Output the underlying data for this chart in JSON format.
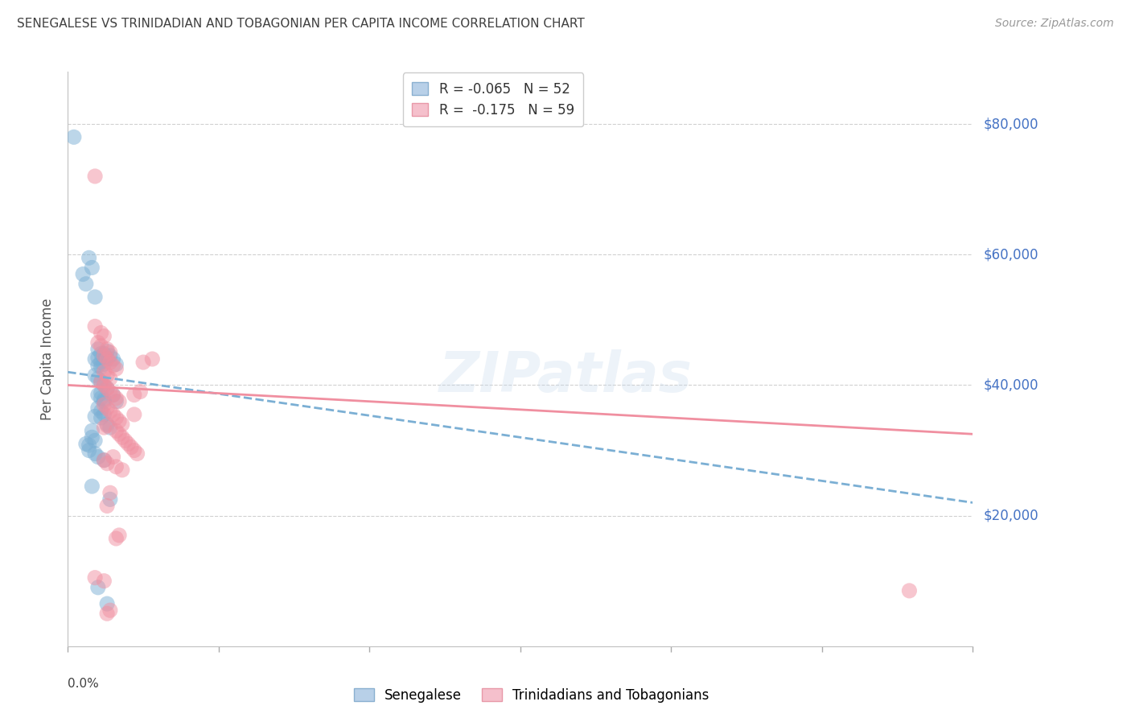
{
  "title": "SENEGALESE VS TRINIDADIAN AND TOBAGONIAN PER CAPITA INCOME CORRELATION CHART",
  "source": "Source: ZipAtlas.com",
  "ylabel": "Per Capita Income",
  "yticks": [
    20000,
    40000,
    60000,
    80000
  ],
  "ytick_labels": [
    "$20,000",
    "$40,000",
    "$60,000",
    "$80,000"
  ],
  "xlim": [
    0.0,
    0.3
  ],
  "ylim": [
    0,
    88000
  ],
  "xtick_positions": [
    0.0,
    0.05,
    0.1,
    0.15,
    0.2,
    0.25,
    0.3
  ],
  "legend_line1": "R = -0.065   N = 52",
  "legend_line2": "R =  -0.175   N = 59",
  "legend_bottom": [
    "Senegalese",
    "Trinidadians and Tobagonians"
  ],
  "blue_line": [
    0.0,
    42000,
    0.3,
    22000
  ],
  "pink_line": [
    0.0,
    40000,
    0.3,
    32500
  ],
  "blue_scatter": [
    [
      0.002,
      78000
    ],
    [
      0.005,
      57000
    ],
    [
      0.007,
      59500
    ],
    [
      0.008,
      58000
    ],
    [
      0.006,
      55500
    ],
    [
      0.009,
      53500
    ],
    [
      0.01,
      45500
    ],
    [
      0.011,
      44800
    ],
    [
      0.009,
      44000
    ],
    [
      0.01,
      44200
    ],
    [
      0.011,
      43500
    ],
    [
      0.012,
      44800
    ],
    [
      0.013,
      45200
    ],
    [
      0.01,
      43000
    ],
    [
      0.011,
      42800
    ],
    [
      0.012,
      43200
    ],
    [
      0.013,
      44000
    ],
    [
      0.014,
      44500
    ],
    [
      0.015,
      44000
    ],
    [
      0.016,
      43200
    ],
    [
      0.009,
      41500
    ],
    [
      0.01,
      41000
    ],
    [
      0.011,
      40500
    ],
    [
      0.012,
      40000
    ],
    [
      0.013,
      39500
    ],
    [
      0.01,
      38500
    ],
    [
      0.011,
      38000
    ],
    [
      0.012,
      37500
    ],
    [
      0.011,
      36000
    ],
    [
      0.01,
      36500
    ],
    [
      0.012,
      35500
    ],
    [
      0.011,
      35000
    ],
    [
      0.009,
      35200
    ],
    [
      0.013,
      34000
    ],
    [
      0.014,
      33500
    ],
    [
      0.008,
      33000
    ],
    [
      0.007,
      30800
    ],
    [
      0.009,
      29500
    ],
    [
      0.008,
      24500
    ],
    [
      0.014,
      22500
    ],
    [
      0.008,
      32000
    ],
    [
      0.009,
      31500
    ],
    [
      0.01,
      29000
    ],
    [
      0.012,
      28500
    ],
    [
      0.01,
      9000
    ],
    [
      0.013,
      6500
    ],
    [
      0.006,
      31000
    ],
    [
      0.007,
      30000
    ],
    [
      0.011,
      38800
    ],
    [
      0.012,
      37800
    ],
    [
      0.015,
      38500
    ],
    [
      0.016,
      37500
    ]
  ],
  "pink_scatter": [
    [
      0.009,
      72000
    ],
    [
      0.009,
      49000
    ],
    [
      0.011,
      48000
    ],
    [
      0.012,
      47500
    ],
    [
      0.01,
      46500
    ],
    [
      0.011,
      46000
    ],
    [
      0.013,
      45500
    ],
    [
      0.014,
      45000
    ],
    [
      0.012,
      44500
    ],
    [
      0.013,
      44000
    ],
    [
      0.014,
      43500
    ],
    [
      0.015,
      43000
    ],
    [
      0.016,
      42500
    ],
    [
      0.012,
      42000
    ],
    [
      0.013,
      41500
    ],
    [
      0.014,
      41000
    ],
    [
      0.011,
      40500
    ],
    [
      0.012,
      40000
    ],
    [
      0.013,
      39500
    ],
    [
      0.014,
      39000
    ],
    [
      0.015,
      38500
    ],
    [
      0.016,
      38000
    ],
    [
      0.017,
      37500
    ],
    [
      0.012,
      37000
    ],
    [
      0.013,
      36500
    ],
    [
      0.014,
      36000
    ],
    [
      0.015,
      35500
    ],
    [
      0.016,
      35000
    ],
    [
      0.017,
      34500
    ],
    [
      0.018,
      34000
    ],
    [
      0.012,
      33500
    ],
    [
      0.013,
      33800
    ],
    [
      0.016,
      33000
    ],
    [
      0.017,
      32500
    ],
    [
      0.018,
      32000
    ],
    [
      0.019,
      31500
    ],
    [
      0.02,
      31000
    ],
    [
      0.021,
      30500
    ],
    [
      0.022,
      30000
    ],
    [
      0.023,
      29500
    ],
    [
      0.015,
      29000
    ],
    [
      0.012,
      28500
    ],
    [
      0.013,
      28000
    ],
    [
      0.016,
      27500
    ],
    [
      0.018,
      27000
    ],
    [
      0.022,
      38500
    ],
    [
      0.024,
      39000
    ],
    [
      0.025,
      43500
    ],
    [
      0.028,
      44000
    ],
    [
      0.022,
      35500
    ],
    [
      0.014,
      23500
    ],
    [
      0.013,
      21500
    ],
    [
      0.016,
      16500
    ],
    [
      0.017,
      17000
    ],
    [
      0.009,
      10500
    ],
    [
      0.012,
      10000
    ],
    [
      0.279,
      8500
    ],
    [
      0.014,
      5500
    ],
    [
      0.013,
      5000
    ]
  ],
  "blue_color": "#7bafd4",
  "pink_color": "#f08fa0",
  "bg_color": "#ffffff",
  "grid_color": "#d0d0d0",
  "ytick_color": "#4472c4",
  "text_color": "#404040",
  "source_color": "#999999"
}
